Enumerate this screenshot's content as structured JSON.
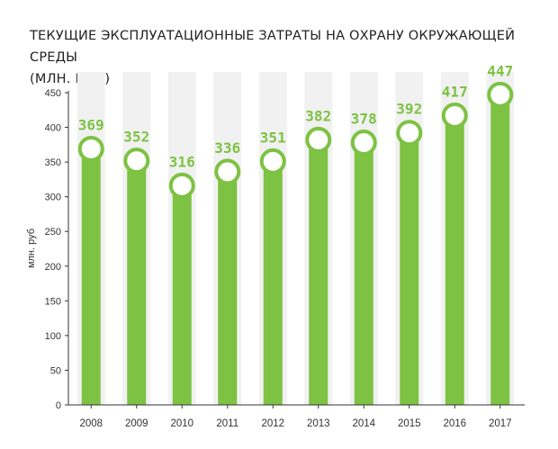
{
  "chart_data": {
    "type": "bar",
    "title_lines": [
      "ТЕКУЩИЕ ЭКСПЛУАТАЦИОННЫЕ ЗАТРАТЫ НА ОХРАНУ ОКРУЖАЮЩЕЙ СРЕДЫ",
      "(МЛН. РУБ.)"
    ],
    "ylabel": "млн. руб",
    "xlabel": "",
    "categories": [
      "2008",
      "2009",
      "2010",
      "2011",
      "2012",
      "2013",
      "2014",
      "2015",
      "2016",
      "2017"
    ],
    "values": [
      369,
      352,
      316,
      336,
      351,
      382,
      378,
      392,
      417,
      447
    ],
    "data_labels": [
      "369",
      "352",
      "316",
      "336",
      "351",
      "382",
      "378",
      "392",
      "417",
      "447"
    ],
    "ylim": [
      0,
      450
    ],
    "yticks": [
      0,
      50,
      100,
      150,
      200,
      250,
      300,
      350,
      400,
      450
    ],
    "grid": false,
    "background_columns": true,
    "colors": {
      "bar": "#7dc242",
      "label": "#7dc242",
      "column_background": "#f1f1f1",
      "marker_fill": "#ffffff",
      "axis": "#333333"
    }
  }
}
